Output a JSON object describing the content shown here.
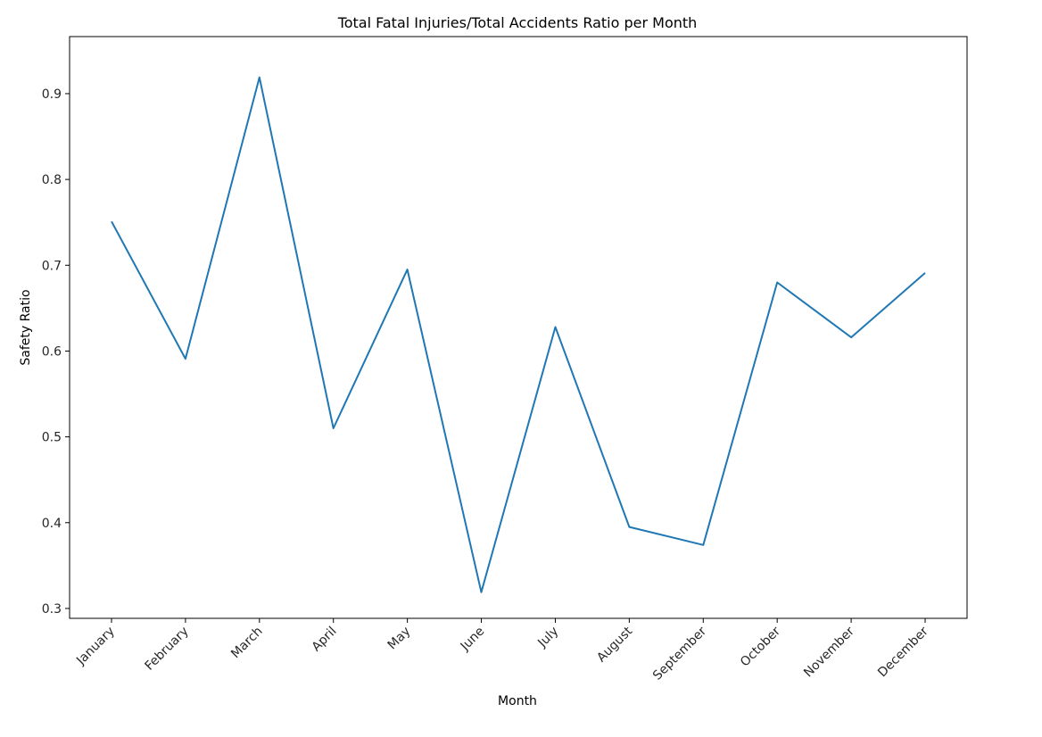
{
  "chart_data": {
    "type": "line",
    "title": "Total Fatal Injuries/Total Accidents Ratio per Month",
    "xlabel": "Month",
    "ylabel": "Safety Ratio",
    "categories": [
      "January",
      "February",
      "March",
      "April",
      "May",
      "June",
      "July",
      "August",
      "September",
      "October",
      "November",
      "December"
    ],
    "series": [
      {
        "values": [
          0.751,
          0.591,
          0.919,
          0.51,
          0.695,
          0.319,
          0.628,
          0.395,
          0.374,
          0.68,
          0.616,
          0.691
        ],
        "color": "#1f77b4"
      }
    ],
    "yticks": [
      0.3,
      0.4,
      0.5,
      0.6,
      0.7,
      0.8,
      0.9
    ],
    "ylim": [
      0.2885,
      0.9665
    ],
    "grid": false,
    "legend": "none"
  }
}
